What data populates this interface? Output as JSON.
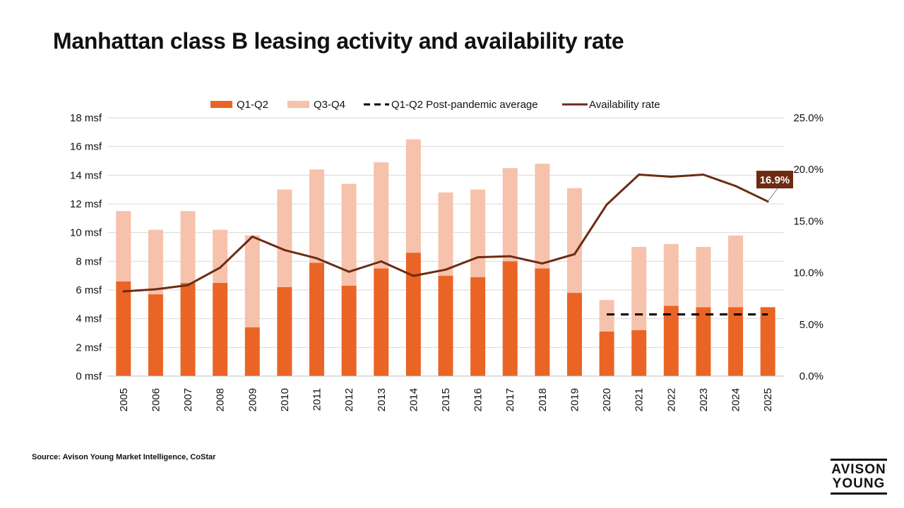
{
  "title": "Manhattan class B leasing activity and availability rate",
  "source": "Source: Avison Young Market Intelligence, CoStar",
  "logo": {
    "line1": "AVISON",
    "line2": "YOUNG"
  },
  "colors": {
    "q1q2": "#ea6426",
    "q3q4": "#f6c2ab",
    "average": "#000000",
    "availability": "#6e2b13",
    "callout_bg": "#6e2b13",
    "gridline": "#d9d9d9"
  },
  "chart_data": {
    "type": "bar",
    "title": "Manhattan class B leasing activity and availability rate",
    "categories": [
      "2005",
      "2006",
      "2007",
      "2008",
      "2009",
      "2010",
      "2011",
      "2012",
      "2013",
      "2014",
      "2015",
      "2016",
      "2017",
      "2018",
      "2019",
      "2020",
      "2021",
      "2022",
      "2023",
      "2024",
      "2025"
    ],
    "series": [
      {
        "name": "Q1-Q2",
        "kind": "stacked-bar",
        "axis": "left",
        "values": [
          6.6,
          5.7,
          6.5,
          6.5,
          3.4,
          6.2,
          7.9,
          6.3,
          7.5,
          8.6,
          7.0,
          6.9,
          8.0,
          7.5,
          5.8,
          3.1,
          3.2,
          4.9,
          4.8,
          4.8,
          4.8
        ]
      },
      {
        "name": "Q3-Q4",
        "kind": "stacked-bar",
        "axis": "left",
        "values": [
          4.9,
          4.5,
          5.0,
          3.7,
          6.4,
          6.8,
          6.5,
          7.1,
          7.4,
          7.9,
          5.8,
          6.1,
          6.5,
          7.3,
          7.3,
          2.2,
          5.8,
          4.3,
          4.2,
          5.0,
          0
        ]
      },
      {
        "name": "Q1-Q2 Post-pandemic average",
        "kind": "dashed-line",
        "axis": "left",
        "x_start": "2020",
        "x_end": "2025",
        "value": 4.3
      },
      {
        "name": "Availability rate",
        "kind": "line",
        "axis": "right",
        "values": [
          8.2,
          8.4,
          8.8,
          10.5,
          13.5,
          12.2,
          11.4,
          10.1,
          11.1,
          9.7,
          10.3,
          11.5,
          11.6,
          10.9,
          11.8,
          16.6,
          19.5,
          19.3,
          19.5,
          18.4,
          16.9
        ]
      }
    ],
    "y_left": {
      "label": "",
      "ylim": [
        0,
        18
      ],
      "ticks": [
        {
          "value": 0,
          "label": "0 msf"
        },
        {
          "value": 2,
          "label": "2 msf"
        },
        {
          "value": 4,
          "label": "4 msf"
        },
        {
          "value": 6,
          "label": "6 msf"
        },
        {
          "value": 8,
          "label": "8 msf"
        },
        {
          "value": 10,
          "label": "10 msf"
        },
        {
          "value": 12,
          "label": "12 msf"
        },
        {
          "value": 14,
          "label": "14 msf"
        },
        {
          "value": 16,
          "label": "16 msf"
        },
        {
          "value": 18,
          "label": "18 msf"
        }
      ]
    },
    "y_right": {
      "label": "",
      "ylim": [
        0,
        25
      ],
      "ticks": [
        {
          "value": 0,
          "label": "0.0%"
        },
        {
          "value": 5,
          "label": "5.0%"
        },
        {
          "value": 10,
          "label": "10.0%"
        },
        {
          "value": 15,
          "label": "15.0%"
        },
        {
          "value": 20,
          "label": "20.0%"
        },
        {
          "value": 25,
          "label": "25.0%"
        }
      ]
    },
    "grid": true,
    "legend_position": "top-center",
    "annotation": {
      "category": "2025",
      "series": "Availability rate",
      "label": "16.9%"
    }
  }
}
